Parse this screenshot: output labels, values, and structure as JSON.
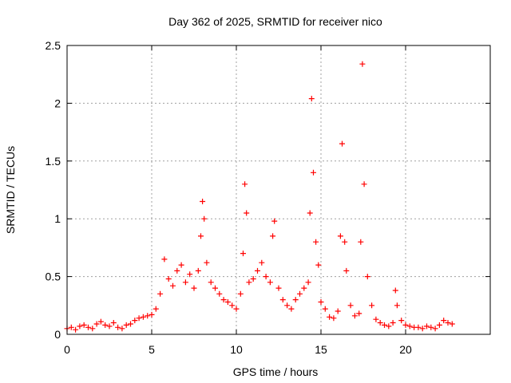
{
  "chart_data": {
    "type": "scatter",
    "title": "Day 362 of 2025, SRMTID for receiver nico",
    "xlabel": "GPS time / hours",
    "ylabel": "SRMTID / TECUs",
    "xlim": [
      0,
      25
    ],
    "ylim": [
      0,
      2.5
    ],
    "grid": true,
    "marker": "+",
    "color": "#ff0000",
    "xticks": [
      0,
      5,
      10,
      15,
      20
    ],
    "yticks": [
      0,
      0.5,
      1,
      1.5,
      2,
      2.5
    ],
    "xtick_labels": [
      "0",
      "5",
      "10",
      "15",
      "20"
    ],
    "ytick_labels": [
      "0",
      "0.5",
      "1",
      "1.5",
      "2",
      "2.5"
    ],
    "series": [
      {
        "name": "SRMTID",
        "x": [
          0.0,
          0.25,
          0.5,
          0.75,
          1.0,
          1.25,
          1.5,
          1.75,
          2.0,
          2.25,
          2.5,
          2.75,
          3.0,
          3.25,
          3.5,
          3.75,
          4.0,
          4.25,
          4.5,
          4.75,
          5.0,
          5.25,
          5.5,
          5.75,
          6.0,
          6.25,
          6.5,
          6.75,
          7.0,
          7.25,
          7.5,
          7.75,
          7.9,
          8.0,
          8.1,
          8.25,
          8.5,
          8.75,
          9.0,
          9.25,
          9.5,
          9.75,
          10.0,
          10.25,
          10.4,
          10.5,
          10.6,
          10.75,
          11.0,
          11.25,
          11.5,
          11.75,
          12.0,
          12.15,
          12.25,
          12.5,
          12.75,
          13.0,
          13.25,
          13.5,
          13.75,
          14.0,
          14.25,
          14.35,
          14.45,
          14.55,
          14.7,
          14.85,
          15.0,
          15.25,
          15.5,
          15.75,
          16.0,
          16.15,
          16.25,
          16.4,
          16.5,
          16.75,
          17.0,
          17.25,
          17.35,
          17.45,
          17.55,
          17.75,
          18.0,
          18.25,
          18.5,
          18.75,
          19.0,
          19.25,
          19.4,
          19.5,
          19.75,
          20.0,
          20.25,
          20.5,
          20.75,
          21.0,
          21.25,
          21.5,
          21.75,
          22.0,
          22.25,
          22.5,
          22.75
        ],
        "y": [
          0.05,
          0.06,
          0.04,
          0.07,
          0.08,
          0.06,
          0.05,
          0.09,
          0.11,
          0.08,
          0.07,
          0.1,
          0.06,
          0.05,
          0.08,
          0.09,
          0.12,
          0.14,
          0.15,
          0.16,
          0.17,
          0.22,
          0.35,
          0.65,
          0.48,
          0.42,
          0.55,
          0.6,
          0.45,
          0.52,
          0.4,
          0.55,
          0.85,
          1.15,
          1.0,
          0.62,
          0.45,
          0.4,
          0.35,
          0.3,
          0.28,
          0.25,
          0.22,
          0.35,
          0.7,
          1.3,
          1.05,
          0.45,
          0.48,
          0.55,
          0.62,
          0.5,
          0.45,
          0.85,
          0.98,
          0.4,
          0.3,
          0.25,
          0.22,
          0.3,
          0.35,
          0.4,
          0.45,
          1.05,
          2.04,
          1.4,
          0.8,
          0.6,
          0.28,
          0.22,
          0.15,
          0.14,
          0.2,
          0.85,
          1.65,
          0.8,
          0.55,
          0.25,
          0.16,
          0.18,
          0.8,
          2.34,
          1.3,
          0.5,
          0.25,
          0.13,
          0.1,
          0.08,
          0.07,
          0.1,
          0.38,
          0.25,
          0.12,
          0.08,
          0.07,
          0.06,
          0.06,
          0.05,
          0.07,
          0.06,
          0.05,
          0.08,
          0.12,
          0.1,
          0.09
        ]
      }
    ]
  }
}
